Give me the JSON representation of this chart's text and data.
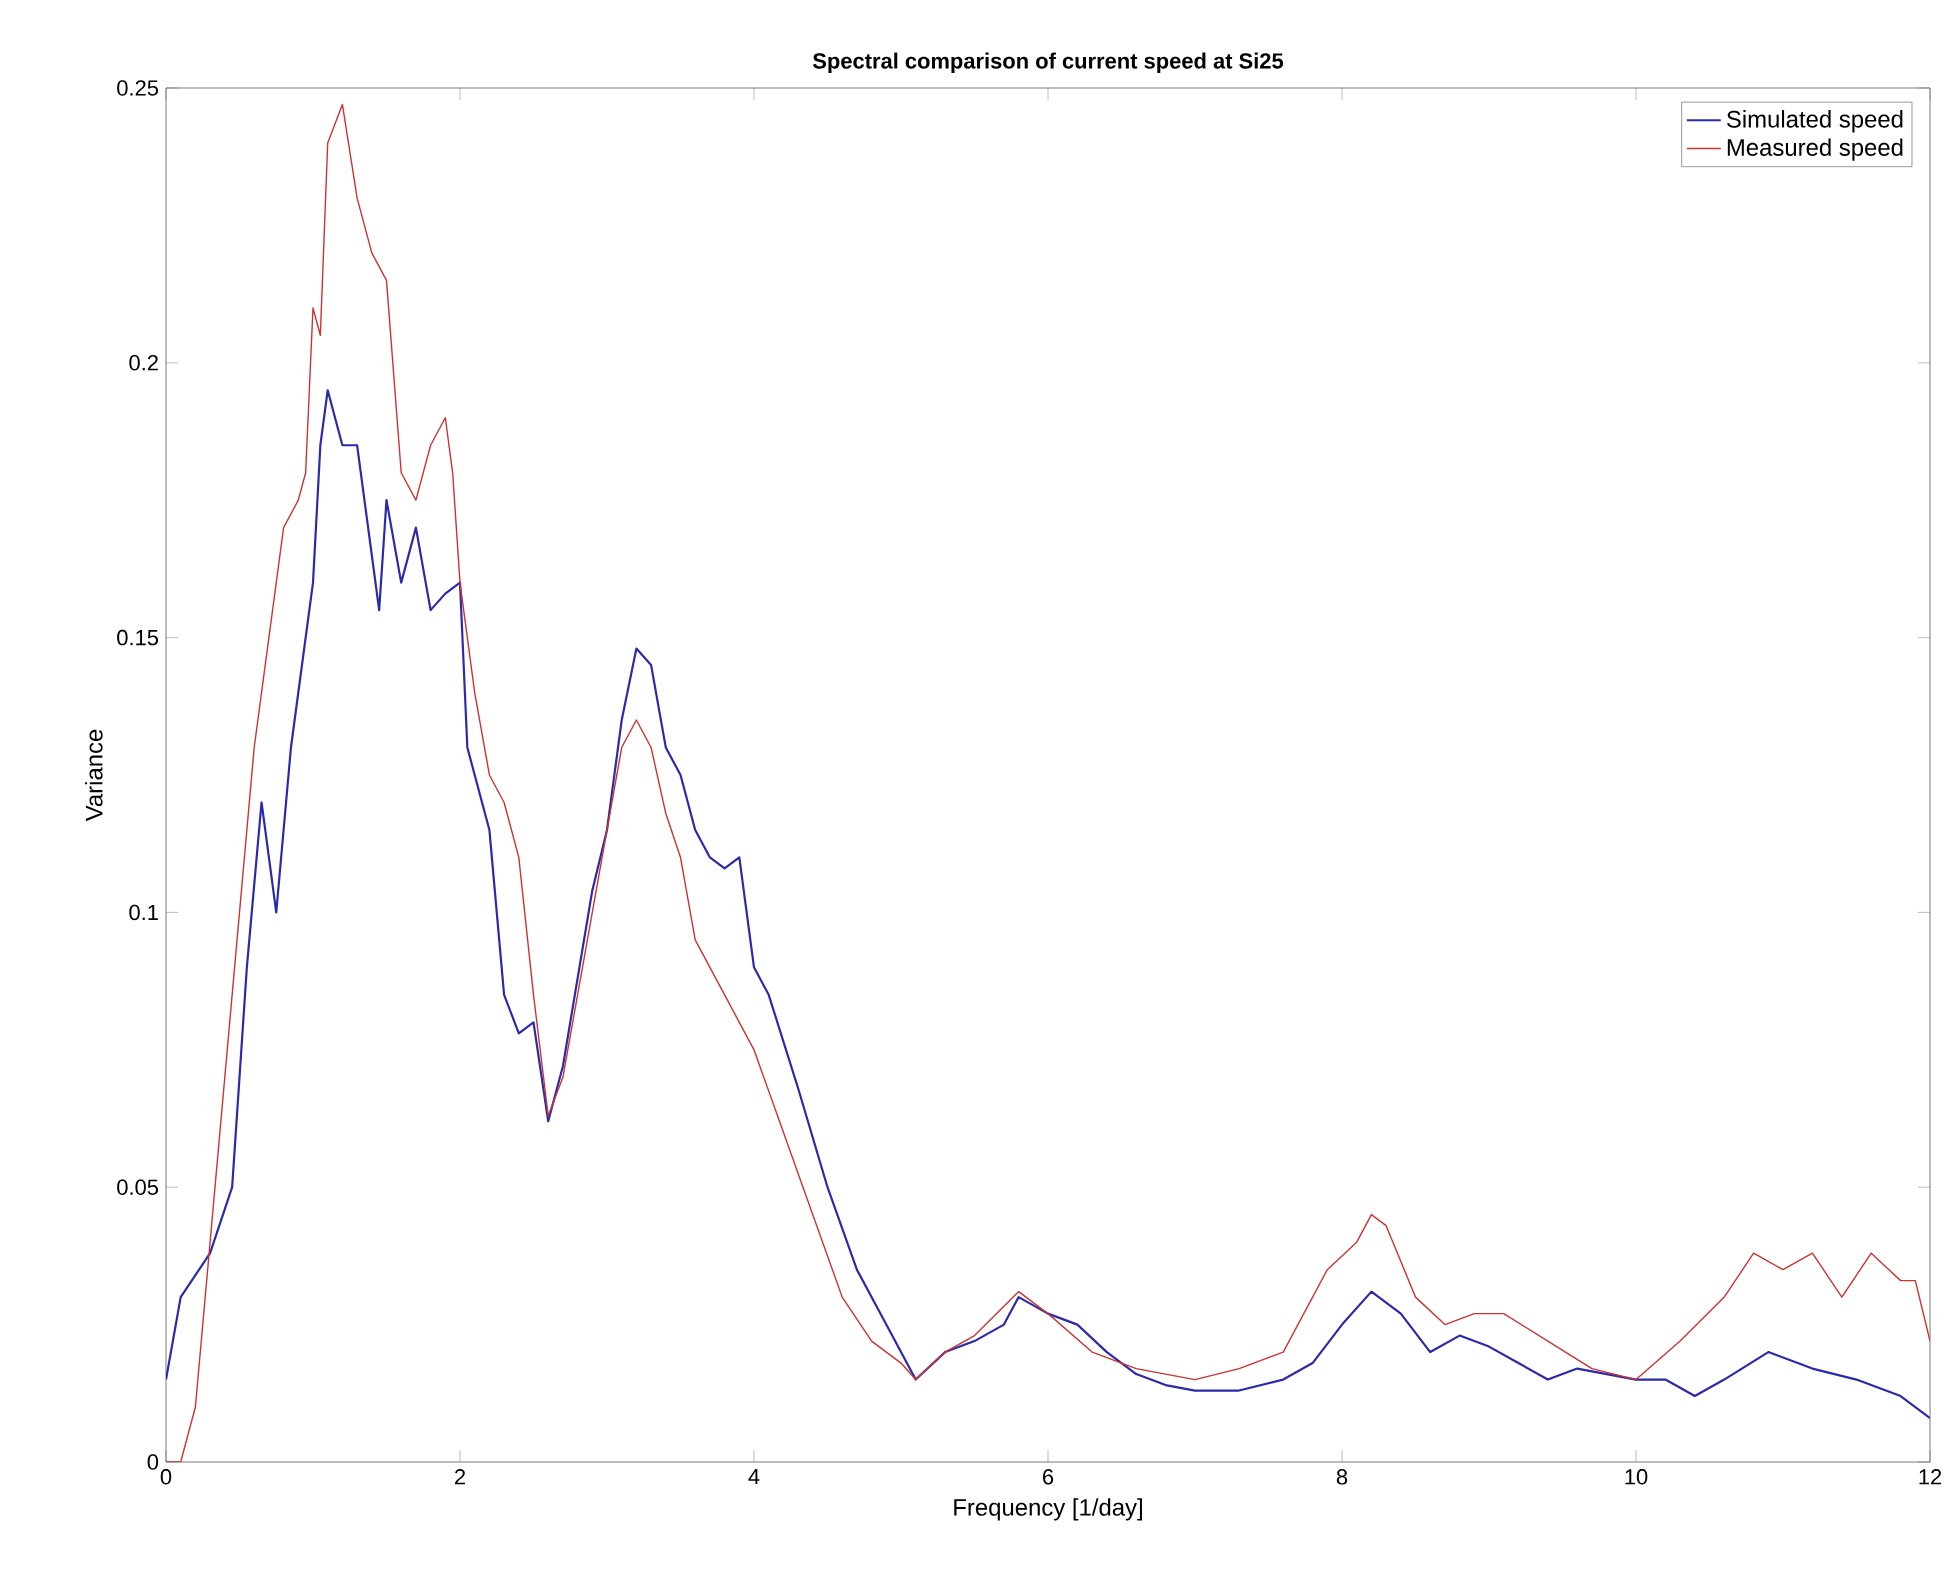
{
  "chart_data": {
    "type": "line",
    "title": "Spectral comparison of current speed at Si25",
    "xlabel": "Frequency [1/day]",
    "ylabel": "Variance",
    "xlim": [
      0,
      12
    ],
    "ylim": [
      0,
      0.25
    ],
    "xticks": [
      0,
      2,
      4,
      6,
      8,
      10,
      12
    ],
    "yticks": [
      0,
      0.05,
      0.1,
      0.15,
      0.2,
      0.25
    ],
    "legend": "top right",
    "grid": false,
    "marker": "none",
    "line_style": "solid",
    "series": [
      {
        "name": "Simulated speed",
        "color": "#2a2aaa",
        "x": [
          0,
          0.1,
          0.3,
          0.45,
          0.55,
          0.65,
          0.75,
          0.85,
          1.0,
          1.05,
          1.1,
          1.2,
          1.3,
          1.4,
          1.45,
          1.5,
          1.6,
          1.7,
          1.8,
          1.9,
          2.0,
          2.05,
          2.2,
          2.3,
          2.4,
          2.5,
          2.6,
          2.7,
          2.9,
          3.0,
          3.1,
          3.2,
          3.3,
          3.4,
          3.5,
          3.6,
          3.7,
          3.8,
          3.9,
          4.0,
          4.1,
          4.3,
          4.5,
          4.7,
          4.9,
          5.1,
          5.3,
          5.5,
          5.7,
          5.8,
          6.0,
          6.2,
          6.4,
          6.6,
          6.8,
          7.0,
          7.3,
          7.6,
          7.8,
          8.0,
          8.2,
          8.4,
          8.6,
          8.8,
          9.0,
          9.2,
          9.4,
          9.6,
          9.8,
          10.0,
          10.2,
          10.4,
          10.6,
          10.9,
          11.2,
          11.5,
          11.8,
          12.0
        ],
        "values": [
          0.015,
          0.03,
          0.038,
          0.05,
          0.09,
          0.12,
          0.1,
          0.13,
          0.16,
          0.185,
          0.195,
          0.185,
          0.185,
          0.165,
          0.155,
          0.175,
          0.16,
          0.17,
          0.155,
          0.158,
          0.16,
          0.13,
          0.115,
          0.085,
          0.078,
          0.08,
          0.062,
          0.072,
          0.104,
          0.115,
          0.135,
          0.148,
          0.145,
          0.13,
          0.125,
          0.115,
          0.11,
          0.108,
          0.11,
          0.09,
          0.085,
          0.068,
          0.05,
          0.035,
          0.025,
          0.015,
          0.02,
          0.022,
          0.025,
          0.03,
          0.027,
          0.025,
          0.02,
          0.016,
          0.014,
          0.013,
          0.013,
          0.015,
          0.018,
          0.025,
          0.031,
          0.027,
          0.02,
          0.023,
          0.021,
          0.018,
          0.015,
          0.017,
          0.016,
          0.015,
          0.015,
          0.012,
          0.015,
          0.02,
          0.017,
          0.015,
          0.012,
          0.008
        ]
      },
      {
        "name": "Measured speed",
        "color": "#cc3333",
        "x": [
          0,
          0.1,
          0.2,
          0.3,
          0.4,
          0.5,
          0.6,
          0.7,
          0.8,
          0.9,
          0.95,
          1.0,
          1.05,
          1.1,
          1.2,
          1.3,
          1.4,
          1.5,
          1.6,
          1.7,
          1.8,
          1.9,
          1.95,
          2.0,
          2.1,
          2.2,
          2.3,
          2.4,
          2.5,
          2.6,
          2.7,
          2.8,
          2.9,
          3.0,
          3.1,
          3.2,
          3.3,
          3.4,
          3.5,
          3.6,
          3.7,
          3.8,
          3.9,
          4.0,
          4.2,
          4.4,
          4.6,
          4.8,
          5.0,
          5.1,
          5.3,
          5.5,
          5.8,
          6.0,
          6.3,
          6.6,
          7.0,
          7.3,
          7.6,
          7.9,
          8.1,
          8.2,
          8.3,
          8.5,
          8.7,
          8.9,
          9.1,
          9.4,
          9.7,
          10.0,
          10.3,
          10.6,
          10.8,
          11.0,
          11.2,
          11.4,
          11.6,
          11.8,
          11.9,
          12.0
        ],
        "values": [
          0,
          0,
          0.01,
          0.04,
          0.07,
          0.1,
          0.13,
          0.15,
          0.17,
          0.175,
          0.18,
          0.21,
          0.205,
          0.24,
          0.247,
          0.23,
          0.22,
          0.215,
          0.18,
          0.175,
          0.185,
          0.19,
          0.18,
          0.16,
          0.14,
          0.125,
          0.12,
          0.11,
          0.085,
          0.063,
          0.07,
          0.085,
          0.1,
          0.115,
          0.13,
          0.135,
          0.13,
          0.118,
          0.11,
          0.095,
          0.09,
          0.085,
          0.08,
          0.075,
          0.06,
          0.045,
          0.03,
          0.022,
          0.018,
          0.015,
          0.02,
          0.023,
          0.031,
          0.027,
          0.02,
          0.017,
          0.015,
          0.017,
          0.02,
          0.035,
          0.04,
          0.045,
          0.043,
          0.03,
          0.025,
          0.027,
          0.027,
          0.022,
          0.017,
          0.015,
          0.022,
          0.03,
          0.038,
          0.035,
          0.038,
          0.03,
          0.038,
          0.033,
          0.033,
          0.022
        ]
      }
    ]
  }
}
